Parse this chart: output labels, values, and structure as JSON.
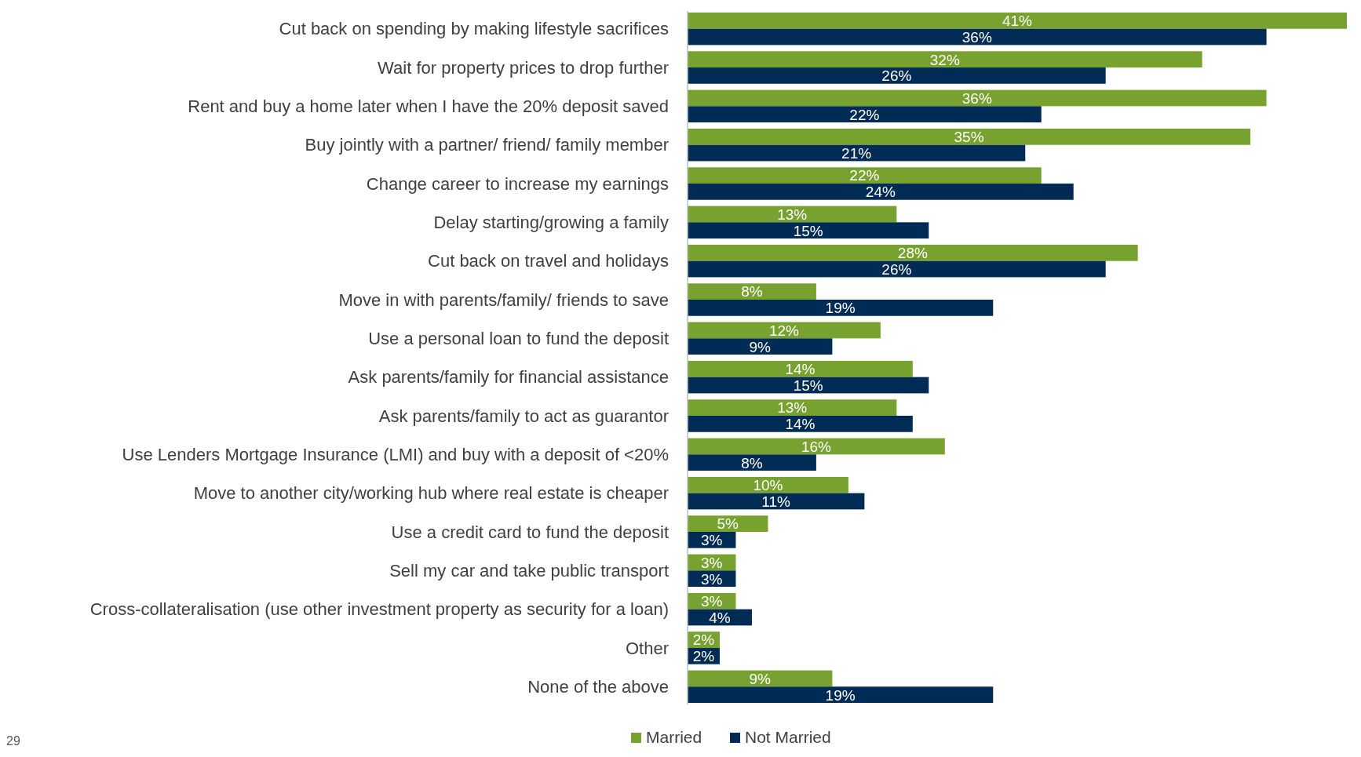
{
  "chart_data": {
    "type": "bar",
    "orientation": "horizontal",
    "categories": [
      "Cut back on spending by making lifestyle sacrifices",
      "Wait for property prices to drop further",
      "Rent and buy a home later when I have the 20% deposit saved",
      "Buy jointly with a partner/ friend/ family member",
      "Change career to increase my earnings",
      "Delay starting/growing a family",
      "Cut back on travel and holidays",
      "Move in with parents/family/ friends to save",
      "Use a personal loan to fund the deposit",
      "Ask parents/family for financial assistance",
      "Ask parents/family to act as guarantor",
      "Use Lenders Mortgage Insurance (LMI) and buy with a deposit of <20%",
      "Move to another city/working hub where real estate is cheaper",
      "Use a credit card to fund the deposit",
      "Sell my car and take public transport",
      "Cross-collateralisation (use other investment property as security for a loan)",
      "Other",
      "None of the above"
    ],
    "series": [
      {
        "name": "Married",
        "color": "#78a22f",
        "values": [
          41,
          32,
          36,
          35,
          22,
          13,
          28,
          8,
          12,
          14,
          13,
          16,
          10,
          5,
          3,
          3,
          2,
          9
        ],
        "value_labels": [
          "41%",
          "32%",
          "36%",
          "35%",
          "22%",
          "13%",
          "28%",
          "8%",
          "12%",
          "14%",
          "13%",
          "16%",
          "10%",
          "5%",
          "3%",
          "3%",
          "2%",
          "9%"
        ]
      },
      {
        "name": "Not Married",
        "color": "#002b54",
        "values": [
          36,
          26,
          22,
          21,
          24,
          15,
          26,
          19,
          9,
          15,
          14,
          8,
          11,
          3,
          3,
          4,
          2,
          19
        ],
        "value_labels": [
          "36%",
          "26%",
          "22%",
          "21%",
          "24%",
          "15%",
          "26%",
          "19%",
          "9%",
          "15%",
          "14%",
          "8%",
          "11%",
          "3%",
          "3%",
          "4%",
          "2%",
          "19%"
        ]
      }
    ],
    "legend": "bottom",
    "annotations": [
      "29"
    ]
  }
}
